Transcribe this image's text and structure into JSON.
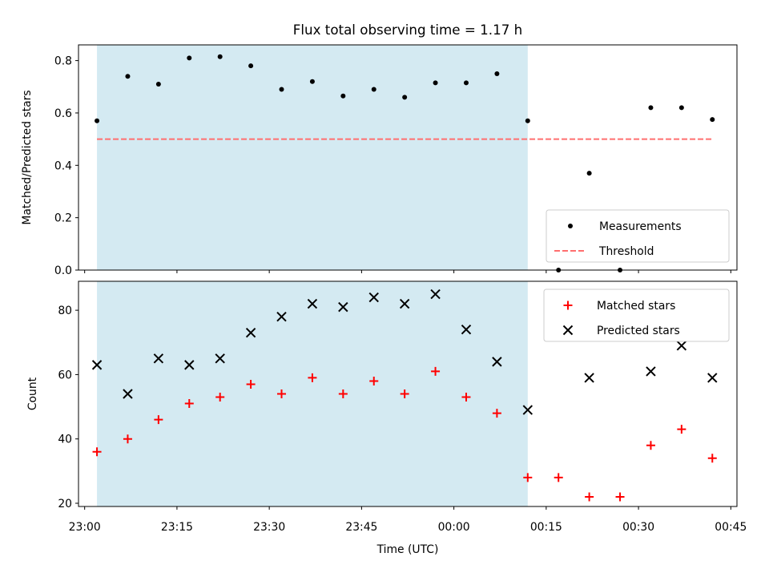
{
  "figure": {
    "title": "Flux total observing time = 1.17 h",
    "xlabel": "Time (UTC)"
  },
  "colors": {
    "shade": "#add8e6",
    "measurement": "#000000",
    "threshold": "#ff6f6f",
    "matched": "#ff0000",
    "predicted": "#000000"
  },
  "chart_data": [
    {
      "type": "scatter",
      "ylabel": "Matched/Predicted stars",
      "ylim": [
        0.0,
        0.86
      ],
      "yticks": [
        0.0,
        0.2,
        0.4,
        0.6,
        0.8
      ],
      "ytick_labels": [
        "0.0",
        "0.2",
        "0.4",
        "0.6",
        "0.8"
      ],
      "xlim": [
        "22:59",
        "00:46"
      ],
      "shaded_region": [
        "23:02",
        "00:12"
      ],
      "legend_position": "bottom-right",
      "series": [
        {
          "name": "Measurements",
          "marker": "dot",
          "x": [
            "23:02",
            "23:07",
            "23:12",
            "23:17",
            "23:22",
            "23:27",
            "23:32",
            "23:37",
            "23:42",
            "23:47",
            "23:52",
            "23:57",
            "00:02",
            "00:07",
            "00:12",
            "00:17",
            "00:22",
            "00:27",
            "00:32",
            "00:37",
            "00:42"
          ],
          "y": [
            0.57,
            0.74,
            0.71,
            0.81,
            0.815,
            0.78,
            0.69,
            0.72,
            0.665,
            0.69,
            0.66,
            0.715,
            0.715,
            0.75,
            0.57,
            0.0,
            0.37,
            0.0,
            0.62,
            0.62,
            0.575
          ]
        },
        {
          "name": "Threshold",
          "style": "dashed",
          "x": [
            "23:02",
            "00:42"
          ],
          "y": [
            0.5,
            0.5
          ]
        }
      ]
    },
    {
      "type": "scatter",
      "ylabel": "Count",
      "ylim": [
        19,
        89
      ],
      "yticks": [
        20,
        40,
        60,
        80
      ],
      "ytick_labels": [
        "20",
        "40",
        "60",
        "80"
      ],
      "xlim": [
        "22:59",
        "00:46"
      ],
      "xticks": [
        "23:00",
        "23:15",
        "23:30",
        "23:45",
        "00:00",
        "00:15",
        "00:30",
        "00:45"
      ],
      "shaded_region": [
        "23:02",
        "00:12"
      ],
      "legend_position": "top-right",
      "series": [
        {
          "name": "Matched stars",
          "marker": "plus",
          "x": [
            "23:02",
            "23:07",
            "23:12",
            "23:17",
            "23:22",
            "23:27",
            "23:32",
            "23:37",
            "23:42",
            "23:47",
            "23:52",
            "23:57",
            "00:02",
            "00:07",
            "00:12",
            "00:17",
            "00:22",
            "00:27",
            "00:32",
            "00:37",
            "00:42"
          ],
          "y": [
            36,
            40,
            46,
            51,
            53,
            57,
            54,
            59,
            54,
            58,
            54,
            61,
            53,
            48,
            28,
            28,
            22,
            22,
            38,
            43,
            34
          ]
        },
        {
          "name": "Predicted stars",
          "marker": "x",
          "x": [
            "23:02",
            "23:07",
            "23:12",
            "23:17",
            "23:22",
            "23:27",
            "23:32",
            "23:37",
            "23:42",
            "23:47",
            "23:52",
            "23:57",
            "00:02",
            "00:07",
            "00:12",
            "00:22",
            "00:32",
            "00:37",
            "00:42"
          ],
          "y": [
            63,
            54,
            65,
            63,
            65,
            73,
            78,
            82,
            81,
            84,
            82,
            85,
            74,
            64,
            49,
            59,
            61,
            69,
            59
          ]
        }
      ]
    }
  ]
}
